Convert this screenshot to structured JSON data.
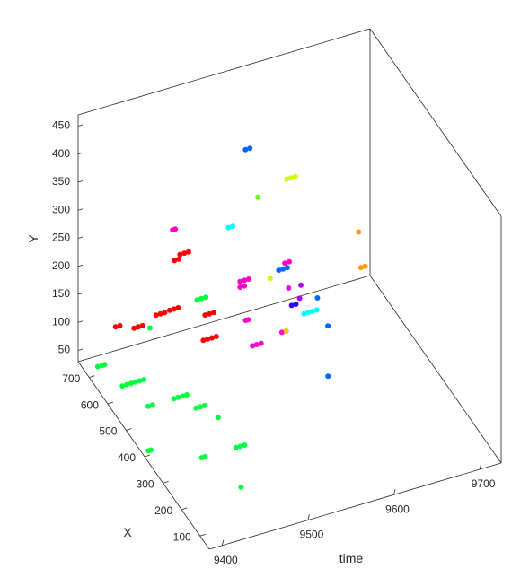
{
  "chart_data": {
    "type": "scatter",
    "projection": "3d",
    "xlabel": "time",
    "ylabel": "X",
    "zlabel": "Y",
    "time_ticks": [
      "9400",
      "9500",
      "9600",
      "9700"
    ],
    "x_ticks": [
      "100",
      "200",
      "300",
      "400",
      "500",
      "600",
      "700"
    ],
    "y_ticks": [
      "50",
      "100",
      "150",
      "200",
      "250",
      "300",
      "350",
      "400",
      "450"
    ],
    "time_range": [
      9385,
      9725
    ],
    "x_range": [
      50,
      760
    ],
    "y_range": [
      30,
      470
    ],
    "grid": false,
    "legend": "none",
    "tracks": [
      {
        "color": "#00ff40",
        "points": [
          [
            9400,
            590,
            60
          ],
          [
            9405,
            590,
            60
          ],
          [
            9410,
            590,
            60
          ],
          [
            9415,
            590,
            60
          ],
          [
            9420,
            590,
            60
          ],
          [
            9425,
            590,
            60
          ]
        ]
      },
      {
        "color": "#00ff40",
        "points": [
          [
            9395,
            700,
            45
          ],
          [
            9400,
            700,
            45
          ],
          [
            9403,
            700,
            45
          ]
        ]
      },
      {
        "color": "#00ff40",
        "points": [
          [
            9415,
            520,
            50
          ],
          [
            9420,
            520,
            50
          ]
        ]
      },
      {
        "color": "#00ff40",
        "points": [
          [
            9445,
            520,
            50
          ],
          [
            9450,
            520,
            50
          ],
          [
            9455,
            520,
            50
          ],
          [
            9460,
            520,
            50
          ]
        ]
      },
      {
        "color": "#00ff40",
        "points": [
          [
            9460,
            470,
            50
          ],
          [
            9465,
            470,
            50
          ],
          [
            9470,
            470,
            50
          ]
        ]
      },
      {
        "color": "#00ff40",
        "points": [
          [
            9385,
            380,
            50
          ],
          [
            9388,
            380,
            50
          ]
        ]
      },
      {
        "color": "#00ff40",
        "points": [
          [
            9430,
            300,
            55
          ],
          [
            9434,
            300,
            55
          ]
        ]
      },
      {
        "color": "#00ff40",
        "points": [
          [
            9470,
            300,
            55
          ],
          [
            9475,
            300,
            55
          ],
          [
            9480,
            300,
            55
          ]
        ]
      },
      {
        "color": "#00ff40",
        "points": [
          [
            9475,
            420,
            50
          ]
        ]
      },
      {
        "color": "#00ff40",
        "points": [
          [
            9450,
            180,
            50
          ]
        ]
      },
      {
        "color": "#00ff40",
        "points": [
          [
            9500,
            650,
            140
          ],
          [
            9505,
            650,
            140
          ],
          [
            9510,
            650,
            140
          ]
        ]
      },
      {
        "color": "#00ff40",
        "points": [
          [
            9460,
            720,
            75
          ]
        ]
      },
      {
        "color": "#ff0000",
        "points": [
          [
            9455,
            590,
            170
          ],
          [
            9460,
            590,
            170
          ],
          [
            9465,
            590,
            170
          ]
        ]
      },
      {
        "color": "#ff0000",
        "points": [
          [
            9450,
            640,
            140
          ],
          [
            9455,
            640,
            140
          ],
          [
            9460,
            640,
            140
          ]
        ]
      },
      {
        "color": "#ff0000",
        "points": [
          [
            9435,
            690,
            100
          ],
          [
            9440,
            690,
            100
          ],
          [
            9445,
            690,
            100
          ]
        ]
      },
      {
        "color": "#ff0000",
        "points": [
          [
            9420,
            720,
            95
          ],
          [
            9425,
            720,
            95
          ]
        ]
      },
      {
        "color": "#ff0000",
        "points": [
          [
            9480,
            650,
            230
          ],
          [
            9485,
            650,
            230
          ],
          [
            9490,
            650,
            230
          ]
        ]
      },
      {
        "color": "#ff0000",
        "points": [
          [
            9490,
            570,
            110
          ],
          [
            9495,
            570,
            110
          ],
          [
            9500,
            570,
            110
          ],
          [
            9505,
            570,
            110
          ]
        ]
      },
      {
        "color": "#ff0000",
        "points": [
          [
            9505,
            630,
            120
          ],
          [
            9510,
            630,
            120
          ],
          [
            9515,
            630,
            120
          ]
        ]
      },
      {
        "color": "#ff0000",
        "points": [
          [
            9480,
            680,
            205
          ],
          [
            9485,
            680,
            205
          ]
        ]
      },
      {
        "color": "#ff00c8",
        "points": [
          [
            9480,
            690,
            255
          ],
          [
            9483,
            690,
            255
          ]
        ]
      },
      {
        "color": "#ff00c8",
        "points": [
          [
            9550,
            650,
            150
          ],
          [
            9555,
            650,
            150
          ],
          [
            9560,
            650,
            150
          ]
        ]
      },
      {
        "color": "#ff00c8",
        "points": [
          [
            9550,
            650,
            140
          ],
          [
            9555,
            650,
            140
          ]
        ]
      },
      {
        "color": "#ff00c8",
        "points": [
          [
            9550,
            620,
            95
          ],
          [
            9553,
            620,
            95
          ]
        ]
      },
      {
        "color": "#ff00c8",
        "points": [
          [
            9545,
            560,
            80
          ],
          [
            9550,
            560,
            80
          ],
          [
            9555,
            560,
            80
          ]
        ]
      },
      {
        "color": "#ff00c8",
        "points": [
          [
            9575,
            540,
            100
          ],
          [
            9580,
            540,
            100
          ]
        ]
      },
      {
        "color": "#ff00c8",
        "points": [
          [
            9600,
            640,
            165
          ],
          [
            9605,
            640,
            165
          ]
        ]
      },
      {
        "color": "#ff00c8",
        "points": [
          [
            9600,
            620,
            130
          ]
        ]
      },
      {
        "color": "#ffcc00",
        "points": [
          [
            9580,
            540,
            100
          ]
        ]
      },
      {
        "color": "#00ffff",
        "points": [
          [
            9560,
            760,
            190
          ],
          [
            9565,
            760,
            190
          ]
        ]
      },
      {
        "color": "#00ffff",
        "points": [
          [
            9605,
            560,
            110
          ],
          [
            9610,
            560,
            110
          ],
          [
            9615,
            560,
            110
          ],
          [
            9620,
            560,
            110
          ]
        ]
      },
      {
        "color": "#0066ff",
        "points": [
          [
            9595,
            650,
            150
          ],
          [
            9600,
            650,
            150
          ],
          [
            9605,
            650,
            150
          ]
        ]
      },
      {
        "color": "#0066ff",
        "points": [
          [
            9580,
            760,
            320
          ],
          [
            9585,
            760,
            320
          ]
        ]
      },
      {
        "color": "#0066ff",
        "points": [
          [
            9620,
            500,
            110
          ]
        ]
      },
      {
        "color": "#0066ff",
        "points": [
          [
            9605,
            430,
            60
          ]
        ]
      },
      {
        "color": "#0066ff",
        "points": [
          [
            9625,
            580,
            120
          ]
        ]
      },
      {
        "color": "#3300ff",
        "points": [
          [
            9595,
            580,
            120
          ],
          [
            9600,
            580,
            120
          ]
        ]
      },
      {
        "color": "#aa00ff",
        "points": [
          [
            9600,
            560,
            140
          ]
        ]
      },
      {
        "color": "#aa00ff",
        "points": [
          [
            9610,
            600,
            140
          ]
        ]
      },
      {
        "color": "#ccff00",
        "points": [
          [
            9585,
            650,
            140
          ]
        ]
      },
      {
        "color": "#ccff00",
        "points": [
          [
            9615,
            700,
            280
          ],
          [
            9620,
            700,
            280
          ],
          [
            9625,
            700,
            280
          ]
        ]
      },
      {
        "color": "#66ff00",
        "points": [
          [
            9590,
            740,
            240
          ]
        ]
      },
      {
        "color": "#ff9900",
        "points": [
          [
            9680,
            600,
            140
          ],
          [
            9685,
            600,
            140
          ]
        ]
      },
      {
        "color": "#ff9900",
        "points": [
          [
            9660,
            520,
            250
          ]
        ]
      }
    ]
  }
}
